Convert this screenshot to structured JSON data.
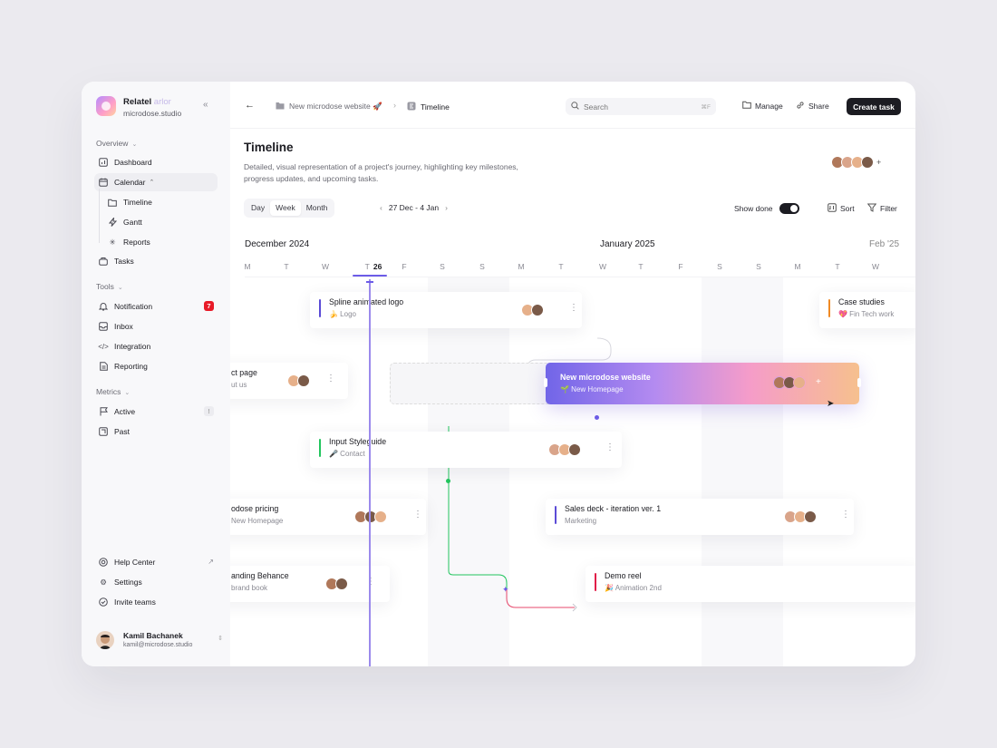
{
  "workspace": {
    "name": "Relatel",
    "name_faded": "arlor",
    "domain": "microdose.studio"
  },
  "sidebar": {
    "overview_label": "Overview",
    "items_overview": [
      {
        "label": "Dashboard",
        "icon": "dashboard-icon"
      },
      {
        "label": "Calendar",
        "icon": "calendar-icon"
      },
      {
        "label": "Timeline",
        "icon": "folder-icon"
      },
      {
        "label": "Gantt",
        "icon": "bolt-icon"
      },
      {
        "label": "Reports",
        "icon": "sparkle-icon"
      },
      {
        "label": "Tasks",
        "icon": "bag-icon"
      }
    ],
    "tools_label": "Tools",
    "items_tools": [
      {
        "label": "Notification",
        "icon": "bell-icon",
        "badge": "7"
      },
      {
        "label": "Inbox",
        "icon": "inbox-icon"
      },
      {
        "label": "Integration",
        "icon": "code-icon"
      },
      {
        "label": "Reporting",
        "icon": "document-icon"
      }
    ],
    "metrics_label": "Metrics",
    "items_metrics": [
      {
        "label": "Active",
        "icon": "flag-icon",
        "badge": "!"
      },
      {
        "label": "Past",
        "icon": "export-icon"
      }
    ],
    "items_bottom": [
      {
        "label": "Help Center",
        "icon": "help-icon"
      },
      {
        "label": "Settings",
        "icon": "gear-icon"
      },
      {
        "label": "Invite teams",
        "icon": "check-circle-icon"
      }
    ],
    "user": {
      "name": "Kamil Bachanek",
      "email": "kamil@microdose.studio"
    }
  },
  "topbar": {
    "crumb1": "New microdose website 🚀",
    "crumb2": "Timeline",
    "search_placeholder": "Search",
    "search_shortcut": "⌘F",
    "manage": "Manage",
    "share": "Share",
    "create": "Create task"
  },
  "page": {
    "title": "Timeline",
    "description": "Detailed, visual representation of a project's journey, highlighting key milestones, progress updates, and upcoming tasks."
  },
  "controls": {
    "views": [
      "Day",
      "Week",
      "Month"
    ],
    "selected_view": "Week",
    "range": "27 Dec - 4 Jan",
    "show_done": "Show done",
    "sort": "Sort",
    "filter": "Filter"
  },
  "timeline": {
    "months": [
      "December 2024",
      "January 2025",
      "Feb '25"
    ],
    "days": [
      "M",
      "T",
      "W",
      "T",
      "F",
      "S",
      "S",
      "M",
      "T",
      "W",
      "T",
      "F",
      "S",
      "S",
      "M",
      "T",
      "W"
    ],
    "today_date": "26",
    "tasks": [
      {
        "title": "Spline animated logo",
        "sub": "🍌 Logo",
        "color": "#5b4bd6"
      },
      {
        "title": "Case studies",
        "sub": "💖 Fin Tech work",
        "color": "#f08a24"
      },
      {
        "title": "ct page",
        "sub": "ut us",
        "color": "#fff"
      },
      {
        "title": "New microdose website",
        "sub": "🌱 New Homepage"
      },
      {
        "title": "Input Styleguide",
        "sub": "🎤 Contact",
        "color": "#22c55e"
      },
      {
        "title": "odose pricing",
        "sub": "New Homepage",
        "color": "#fff"
      },
      {
        "title": "Sales deck - iteration ver. 1",
        "sub": "Marketing",
        "color": "#5b4bd6"
      },
      {
        "title": "anding Behance",
        "sub": "brand book",
        "color": "#fff"
      },
      {
        "title": "Demo reel",
        "sub": "🎉 Animation 2nd",
        "color": "#e11d48"
      }
    ]
  }
}
